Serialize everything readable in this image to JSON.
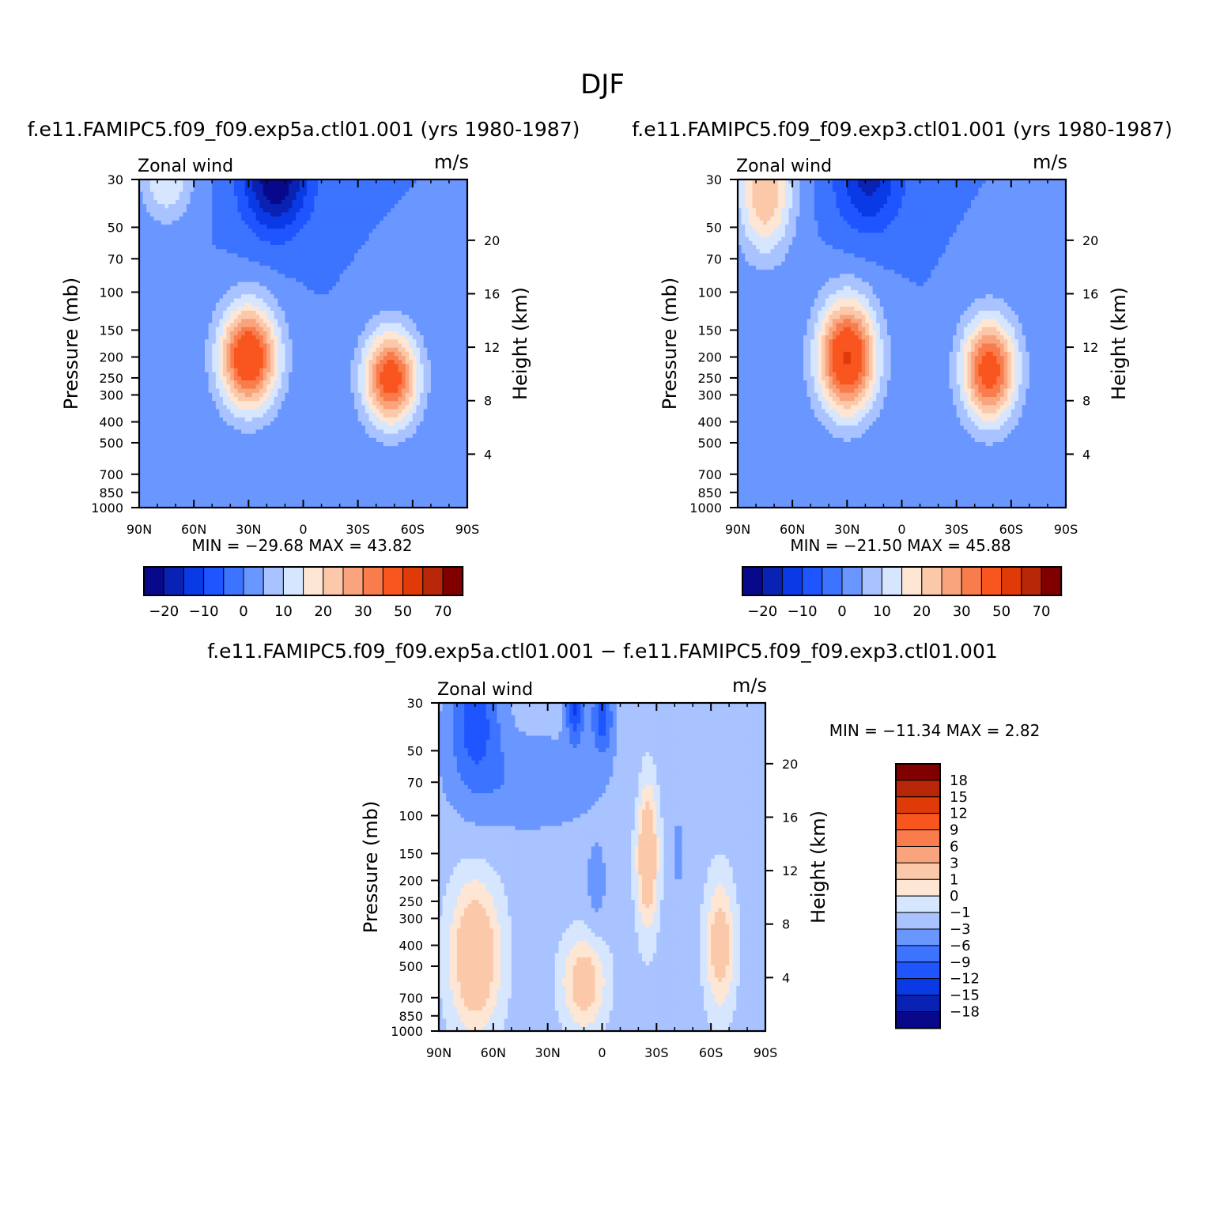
{
  "figure": {
    "title": "DJF"
  },
  "colors": {
    "main_scale": [
      "#08088a",
      "#0a22b3",
      "#0a3ae6",
      "#1e55ff",
      "#3c73ff",
      "#6a96ff",
      "#a8c3ff",
      "#d6e6ff",
      "#fde6d4",
      "#fcc8aa",
      "#f9a47c",
      "#f97c4c",
      "#f9551f",
      "#df3a08",
      "#b82608",
      "#800000"
    ],
    "diff_scale": [
      "#08088a",
      "#0a22b3",
      "#0a3ae6",
      "#1e55ff",
      "#3c73ff",
      "#6a96ff",
      "#a8c3ff",
      "#d6e6ff",
      "#fde6d4",
      "#fcc8aa",
      "#f9a47c",
      "#f97c4c",
      "#f9551f",
      "#df3a08",
      "#b82608",
      "#800000"
    ]
  },
  "chart_data": [
    {
      "type": "heatmap",
      "title": "f.e11.FAMIPC5.f09_f09.exp5a.ctl01.001 (yrs 1980-1987)",
      "left_label": "Zonal wind",
      "right_label": "m/s",
      "xlabel": "",
      "ylabel": "Pressure (mb)",
      "y2label": "Height (km)",
      "x_ticks": [
        "90N",
        "60N",
        "30N",
        "0",
        "30S",
        "60S",
        "90S"
      ],
      "x_tick_values": [
        90,
        60,
        30,
        0,
        -30,
        -60,
        -90
      ],
      "y_ticks": [
        30,
        50,
        70,
        100,
        150,
        200,
        250,
        300,
        400,
        500,
        700,
        850,
        1000
      ],
      "y2_ticks": [
        4,
        8,
        12,
        16,
        20
      ],
      "ylim": [
        1000,
        30
      ],
      "y_scale": "log",
      "stats": "MIN = −29.68   MAX =   43.82",
      "colorbar_labels": [
        "−20",
        "−10",
        "0",
        "10",
        "20",
        "30",
        "50",
        "70"
      ],
      "background": -5,
      "features": [
        {
          "lat": 30,
          "p": 200,
          "amp": 43.82,
          "wlat": 16,
          "wlp": 0.55
        },
        {
          "lat": -48,
          "p": 250,
          "amp": 40.0,
          "wlat": 15,
          "wlp": 0.5
        },
        {
          "lat": 15,
          "p": 30,
          "amp": -24.68,
          "wlat": 18,
          "wlp": 0.55
        },
        {
          "lat": 75,
          "p": 30,
          "amp": 15.0,
          "wlat": 14,
          "wlp": 0.45
        }
      ]
    },
    {
      "type": "heatmap",
      "title": "f.e11.FAMIPC5.f09_f09.exp3.ctl01.001 (yrs 1980-1987)",
      "left_label": "Zonal wind",
      "right_label": "m/s",
      "xlabel": "",
      "ylabel": "Pressure (mb)",
      "y2label": "Height (km)",
      "x_ticks": [
        "90N",
        "60N",
        "30N",
        "0",
        "30S",
        "60S",
        "90S"
      ],
      "x_tick_values": [
        90,
        60,
        30,
        0,
        -30,
        -60,
        -90
      ],
      "y_ticks": [
        30,
        50,
        70,
        100,
        150,
        200,
        250,
        300,
        400,
        500,
        700,
        850,
        1000
      ],
      "y2_ticks": [
        4,
        8,
        12,
        16,
        20
      ],
      "ylim": [
        1000,
        30
      ],
      "y_scale": "log",
      "stats": "MIN = −21.50   MAX =   45.88",
      "colorbar_labels": [
        "−20",
        "−10",
        "0",
        "10",
        "20",
        "30",
        "50",
        "70"
      ],
      "background": -5,
      "features": [
        {
          "lat": 30,
          "p": 200,
          "amp": 45.88,
          "wlat": 16,
          "wlp": 0.6
        },
        {
          "lat": -48,
          "p": 230,
          "amp": 40.0,
          "wlat": 15,
          "wlp": 0.55
        },
        {
          "lat": 18,
          "p": 30,
          "amp": -16.5,
          "wlat": 18,
          "wlp": 0.55
        },
        {
          "lat": 75,
          "p": 35,
          "amp": 25.0,
          "wlat": 15,
          "wlp": 0.65
        }
      ]
    },
    {
      "type": "heatmap",
      "title": "f.e11.FAMIPC5.f09_f09.exp5a.ctl01.001 − f.e11.FAMIPC5.f09_f09.exp3.ctl01.001",
      "left_label": "Zonal wind",
      "right_label": "m/s",
      "xlabel": "",
      "ylabel": "Pressure (mb)",
      "y2label": "Height (km)",
      "x_ticks": [
        "90N",
        "60N",
        "30N",
        "0",
        "30S",
        "60S",
        "90S"
      ],
      "x_tick_values": [
        90,
        60,
        30,
        0,
        -30,
        -60,
        -90
      ],
      "y_ticks": [
        30,
        50,
        70,
        100,
        150,
        200,
        250,
        300,
        400,
        500,
        700,
        850,
        1000
      ],
      "y2_ticks": [
        4,
        8,
        12,
        16,
        20
      ],
      "ylim": [
        1000,
        30
      ],
      "y_scale": "log",
      "stats": "MIN = −11.34   MAX =    2.82",
      "colorbar_labels": [
        "18",
        "15",
        "12",
        "9",
        "6",
        "3",
        "1",
        "0",
        "−1",
        "−3",
        "−6",
        "−9",
        "−12",
        "−15",
        "−18"
      ],
      "background": -1.5,
      "features": [
        {
          "lat": 70,
          "p": 35,
          "amp": -9.0,
          "wlat": 14,
          "wlp": 0.7
        },
        {
          "lat": 15,
          "p": 30,
          "amp": -11.34,
          "wlat": 5,
          "wlp": 0.4
        },
        {
          "lat": 0,
          "p": 35,
          "amp": -9.0,
          "wlat": 6,
          "wlp": 0.4
        },
        {
          "lat": 40,
          "p": 70,
          "amp": -4.0,
          "wlat": 40,
          "wlp": 0.5
        },
        {
          "lat": 70,
          "p": 450,
          "amp": 4.32,
          "wlat": 14,
          "wlp": 0.8
        },
        {
          "lat": -25,
          "p": 150,
          "amp": 4.32,
          "wlat": 6,
          "wlp": 0.8
        },
        {
          "lat": 10,
          "p": 600,
          "amp": 3.5,
          "wlat": 12,
          "wlp": 0.5
        },
        {
          "lat": -65,
          "p": 400,
          "amp": 3.5,
          "wlat": 8,
          "wlp": 0.7
        },
        {
          "lat": 3,
          "p": 200,
          "amp": -3.5,
          "wlat": 5,
          "wlp": 0.4
        },
        {
          "lat": -42,
          "p": 150,
          "amp": -4.0,
          "wlat": 3,
          "wlp": 0.3
        }
      ]
    }
  ]
}
